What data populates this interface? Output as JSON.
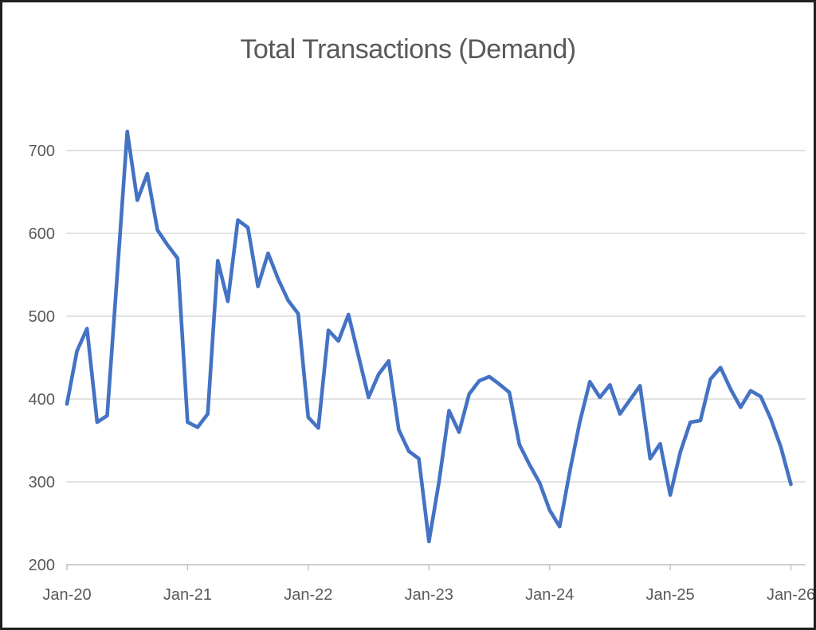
{
  "window": {
    "background": "#ffffff",
    "border_color": "#1f1f1f"
  },
  "chart_data": {
    "type": "line",
    "title": "Total Transactions (Demand)",
    "title_color": "#595959",
    "line_color": "#4472C4",
    "gridline_color": "#D9D9D9",
    "axis_line_color": "#BFBFBF",
    "tick_label_color": "#595959",
    "legend": "none",
    "grid": "horizontal",
    "xlabel": "",
    "ylabel": "",
    "ylim": [
      200,
      740
    ],
    "y_ticks": [
      700,
      600,
      500,
      400,
      300,
      200
    ],
    "x_tick_labels": [
      "Jan-20",
      "Jan-21",
      "Jan-22",
      "Jan-23",
      "Jan-24",
      "Jan-25",
      "Jan-26"
    ],
    "x_frequency": "monthly",
    "months": [
      "Jan-20",
      "Feb-20",
      "Mar-20",
      "Apr-20",
      "May-20",
      "Jun-20",
      "Jul-20",
      "Aug-20",
      "Sep-20",
      "Oct-20",
      "Nov-20",
      "Dec-20",
      "Jan-21",
      "Feb-21",
      "Mar-21",
      "Apr-21",
      "May-21",
      "Jun-21",
      "Jul-21",
      "Aug-21",
      "Sep-21",
      "Oct-21",
      "Nov-21",
      "Dec-21",
      "Jan-22",
      "Feb-22",
      "Mar-22",
      "Apr-22",
      "May-22",
      "Jun-22",
      "Jul-22",
      "Aug-22",
      "Sep-22",
      "Oct-22",
      "Nov-22",
      "Dec-22",
      "Jan-23",
      "Feb-23",
      "Mar-23",
      "Apr-23",
      "May-23",
      "Jun-23",
      "Jul-23",
      "Aug-23",
      "Sep-23",
      "Oct-23",
      "Nov-23",
      "Dec-23",
      "Jan-24",
      "Feb-24",
      "Mar-24",
      "Apr-24",
      "May-24",
      "Jun-24",
      "Jul-24",
      "Aug-24",
      "Sep-24",
      "Oct-24",
      "Nov-24",
      "Dec-24",
      "Jan-25",
      "Feb-25",
      "Mar-25",
      "Apr-25",
      "May-25",
      "Jun-25",
      "Jul-25",
      "Aug-25",
      "Sep-25",
      "Oct-25",
      "Nov-25",
      "Dec-25",
      "Jan-26"
    ],
    "values": [
      394,
      458,
      485,
      372,
      380,
      550,
      723,
      640,
      672,
      604,
      586,
      570,
      372,
      366,
      382,
      567,
      518,
      616,
      607,
      536,
      576,
      545,
      519,
      503,
      378,
      365,
      483,
      470,
      502,
      452,
      402,
      430,
      446,
      363,
      337,
      328,
      228,
      300,
      386,
      360,
      406,
      422,
      427,
      418,
      408,
      345,
      321,
      299,
      266,
      246,
      312,
      372,
      421,
      402,
      417,
      382,
      399,
      416,
      328,
      346,
      284,
      336,
      372,
      374,
      424,
      438,
      412,
      390,
      410,
      403,
      376,
      342,
      297
    ]
  }
}
